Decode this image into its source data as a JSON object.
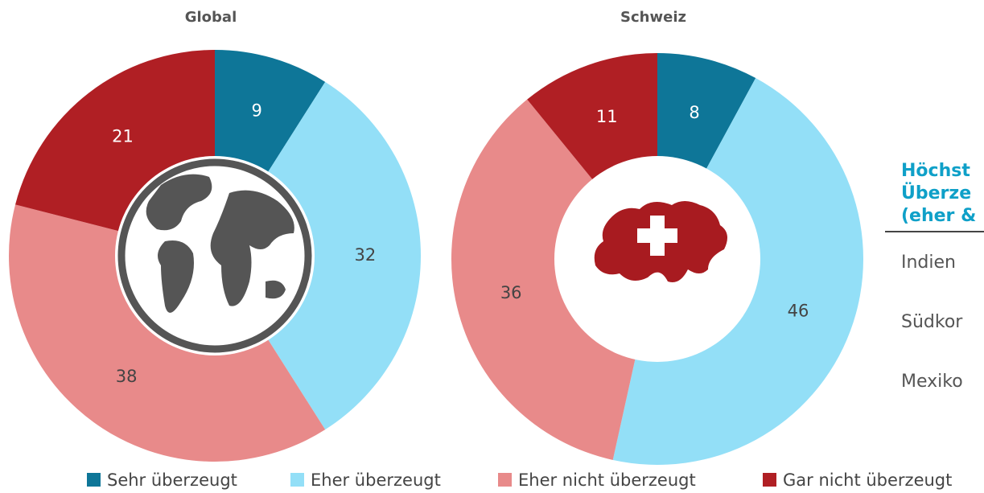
{
  "chart_data": [
    {
      "type": "pie",
      "title": "Global",
      "categories": [
        "Sehr überzeugt",
        "Eher überzeugt",
        "Eher nicht überzeugt",
        "Gar nicht überzeugt"
      ],
      "values": [
        9,
        32,
        38,
        21
      ],
      "colors": [
        "#0e7698",
        "#93dff7",
        "#e88a8a",
        "#b01f24"
      ]
    },
    {
      "type": "pie",
      "title": "Schweiz",
      "values": [
        8,
        46,
        36,
        11
      ],
      "colors": [
        "#0e7698",
        "#93dff7",
        "#e88a8a",
        "#b01f24"
      ]
    }
  ],
  "side_panel": {
    "title_lines": [
      "Höchst",
      "Überze",
      "(eher &"
    ],
    "rows": [
      "Indien",
      "Südkor",
      "Mexiko"
    ]
  }
}
